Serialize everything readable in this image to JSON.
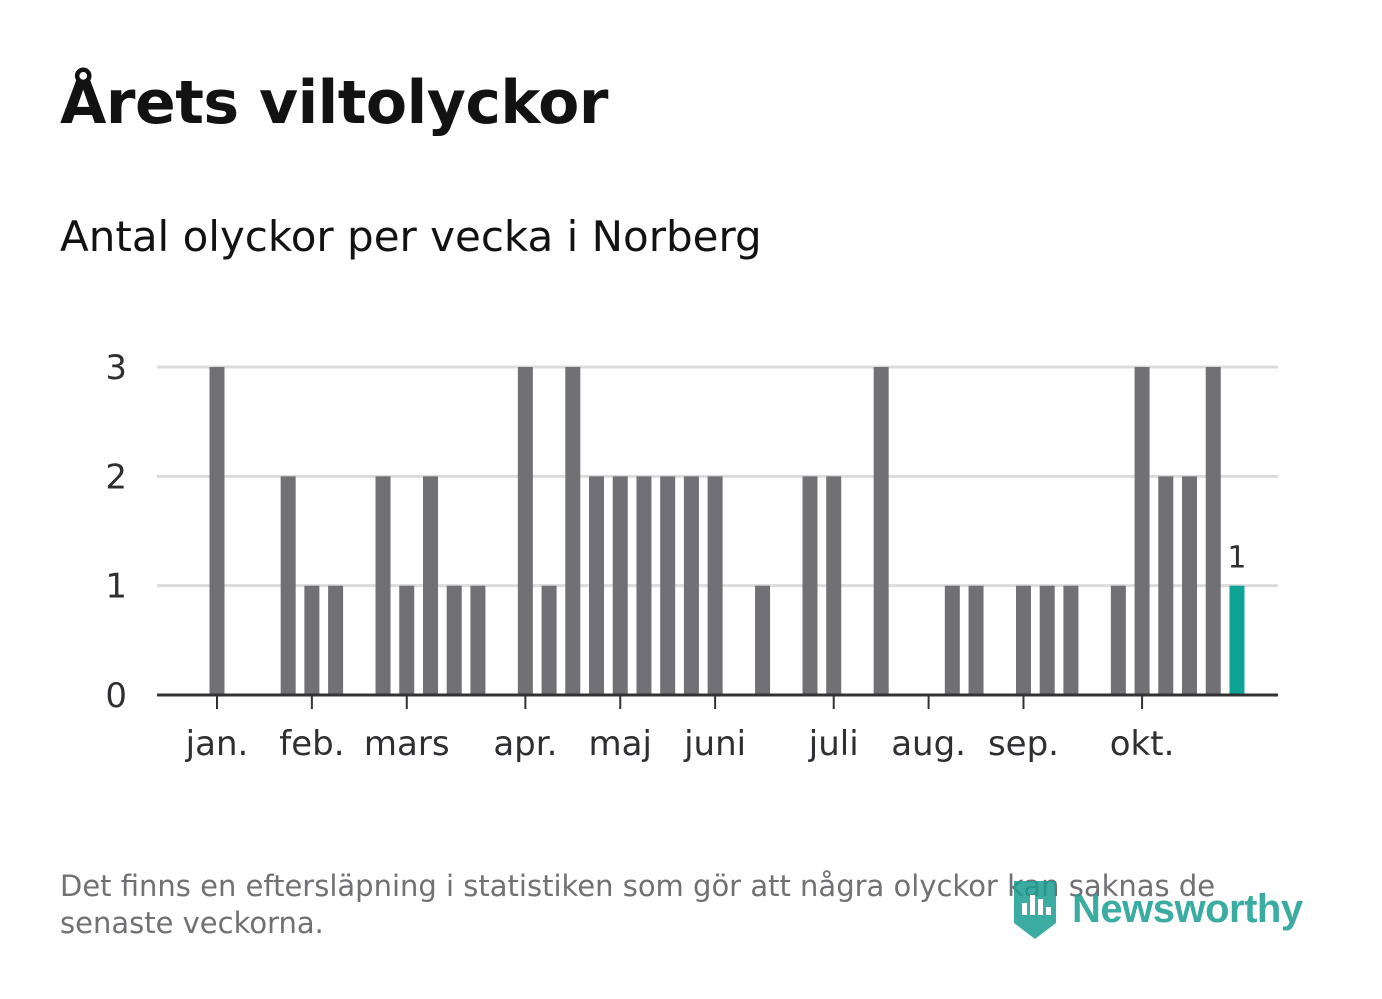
{
  "header": {
    "title": "Årets viltolyckor",
    "subtitle": "Antal olyckor per vecka i Norberg"
  },
  "footer": {
    "note": "Det finns en eftersläpning i statistiken som gör att några olyckor kan saknas de senaste veckorna.",
    "brand": "Newsworthy"
  },
  "colors": {
    "bar": "#707075",
    "highlight": "#0fa396",
    "grid": "#dcdcdc",
    "axis": "#333333",
    "brand": "#1a9e92"
  },
  "chart_data": {
    "type": "bar",
    "title": "Antal olyckor per vecka i Norberg",
    "xlabel": "",
    "ylabel": "",
    "ylim": [
      0,
      3
    ],
    "yticks": [
      0,
      1,
      2,
      3
    ],
    "weeks": [
      1,
      2,
      3,
      4,
      5,
      6,
      7,
      8,
      9,
      10,
      11,
      12,
      13,
      14,
      15,
      16,
      17,
      18,
      19,
      20,
      21,
      22,
      23,
      24,
      25,
      26,
      27,
      28,
      29,
      30,
      31,
      32,
      33,
      34,
      35,
      36,
      37,
      38,
      39,
      40,
      41,
      42,
      43
    ],
    "values": [
      3,
      0,
      0,
      2,
      1,
      1,
      0,
      2,
      1,
      2,
      1,
      1,
      0,
      3,
      1,
      3,
      2,
      2,
      2,
      2,
      2,
      2,
      0,
      1,
      0,
      2,
      2,
      0,
      3,
      0,
      0,
      1,
      1,
      0,
      1,
      1,
      1,
      0,
      1,
      3,
      2,
      2,
      3
    ],
    "highlight": {
      "week": 44,
      "value": 1,
      "label": "1"
    },
    "month_ticks": [
      {
        "label": "jan.",
        "week": 1
      },
      {
        "label": "feb.",
        "week": 5
      },
      {
        "label": "mars",
        "week": 9
      },
      {
        "label": "apr.",
        "week": 14
      },
      {
        "label": "maj",
        "week": 18
      },
      {
        "label": "juni",
        "week": 22
      },
      {
        "label": "juli",
        "week": 27
      },
      {
        "label": "aug.",
        "week": 31
      },
      {
        "label": "sep.",
        "week": 35
      },
      {
        "label": "okt.",
        "week": 40
      }
    ],
    "grid": true,
    "legend": "none"
  }
}
